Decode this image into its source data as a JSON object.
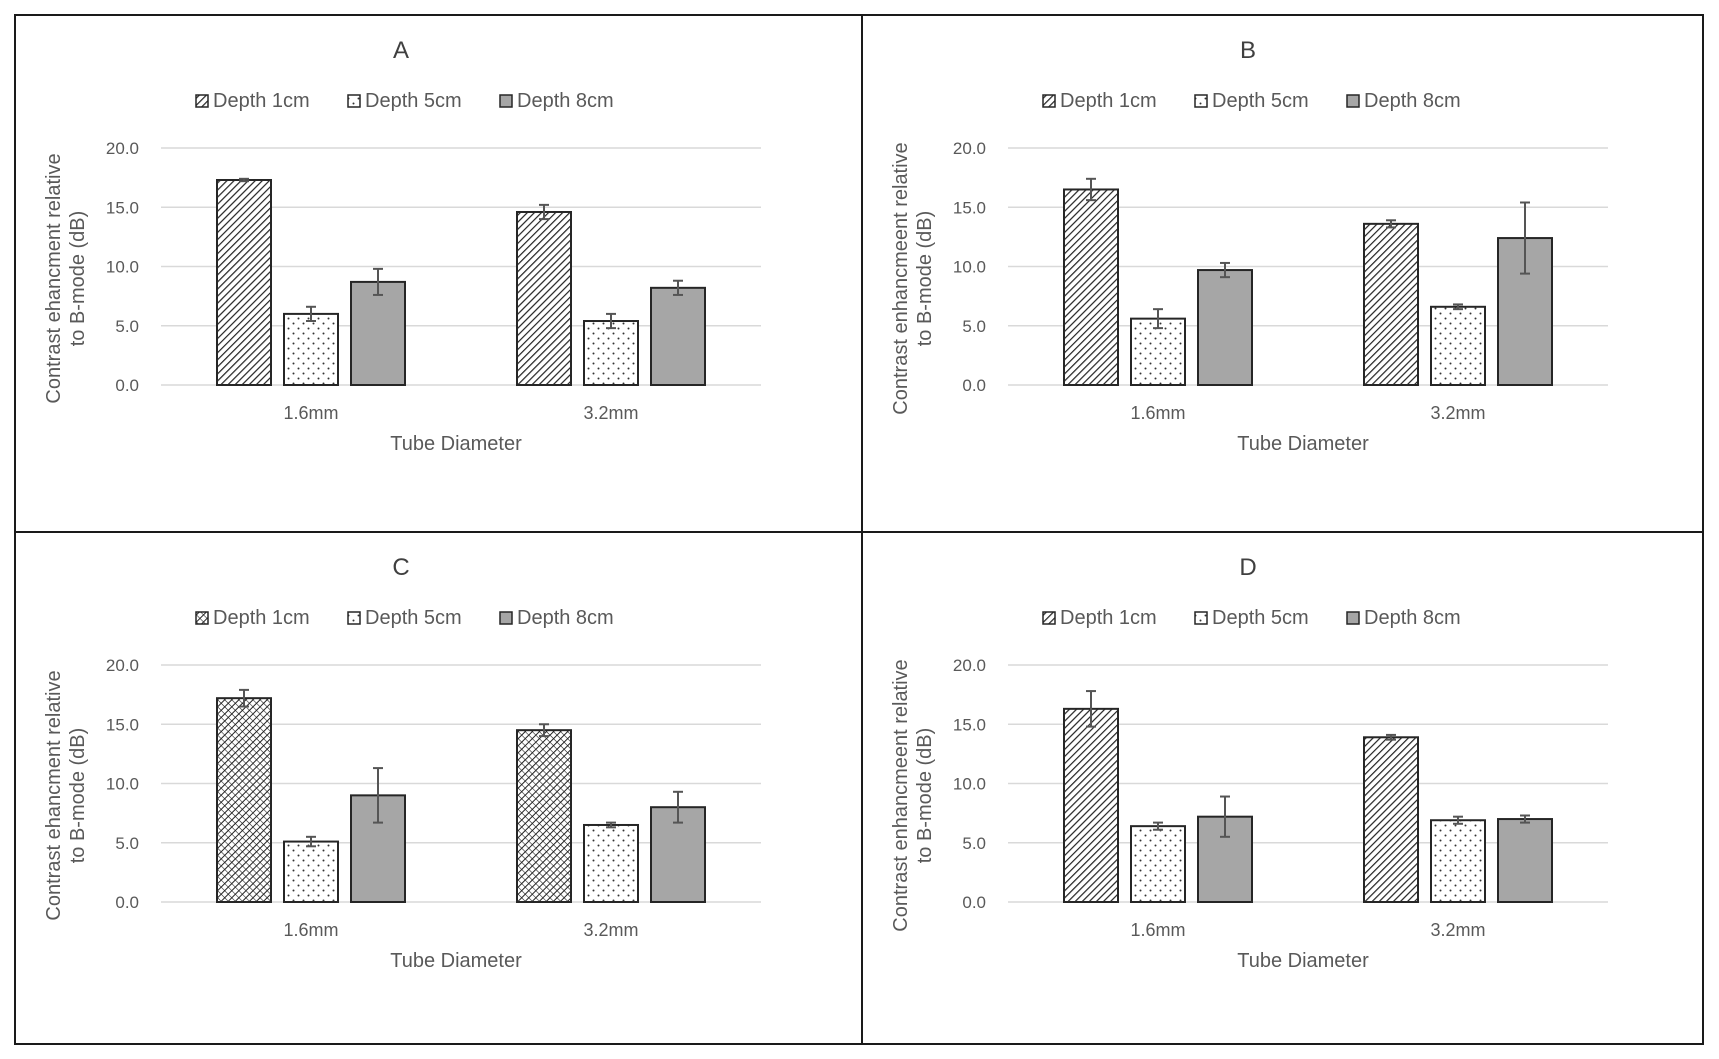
{
  "legend_labels": [
    "Depth 1cm",
    "Depth 5cm",
    "Depth 8cm"
  ],
  "colors": {
    "frame": "#1a1a1a",
    "grid": "#d9d9d9",
    "text": "#595959",
    "bar_solid": "#a6a6a6",
    "bar_edge": "#262626"
  },
  "chart_data": [
    {
      "panel": "A",
      "type": "bar",
      "title": "A",
      "xlabel": "Tube Diameter",
      "ylabel_lines": [
        "Contrast ehancment relative",
        "to B-mode (dB)"
      ],
      "categories": [
        "1.6mm",
        "3.2mm"
      ],
      "ylim": [
        0,
        20
      ],
      "yticks": [
        "0.0",
        "5.0",
        "10.0",
        "15.0",
        "20.0"
      ],
      "grid": true,
      "legend_position": "top",
      "series": [
        {
          "name": "Depth 1cm",
          "pattern": "diagonal-hatch",
          "values": [
            17.3,
            14.6
          ],
          "errors": [
            0.1,
            0.6
          ]
        },
        {
          "name": "Depth 5cm",
          "pattern": "dots",
          "values": [
            6.0,
            5.4
          ],
          "errors": [
            0.6,
            0.6
          ]
        },
        {
          "name": "Depth 8cm",
          "pattern": "solid-gray",
          "values": [
            8.7,
            8.2
          ],
          "errors": [
            1.1,
            0.6
          ]
        }
      ]
    },
    {
      "panel": "B",
      "type": "bar",
      "title": "B",
      "xlabel": "Tube Diameter",
      "ylabel_lines": [
        "Contrast enhancmeent  relative",
        "to B-mode (dB)"
      ],
      "categories": [
        "1.6mm",
        "3.2mm"
      ],
      "ylim": [
        0,
        20
      ],
      "yticks": [
        "0.0",
        "5.0",
        "10.0",
        "15.0",
        "20.0"
      ],
      "grid": true,
      "legend_position": "top",
      "series": [
        {
          "name": "Depth 1cm",
          "pattern": "diagonal-hatch",
          "values": [
            16.5,
            13.6
          ],
          "errors": [
            0.9,
            0.3
          ]
        },
        {
          "name": "Depth 5cm",
          "pattern": "dots",
          "values": [
            5.6,
            6.6
          ],
          "errors": [
            0.8,
            0.2
          ]
        },
        {
          "name": "Depth 8cm",
          "pattern": "solid-gray",
          "values": [
            9.7,
            12.4
          ],
          "errors": [
            0.6,
            3.0
          ]
        }
      ]
    },
    {
      "panel": "C",
      "type": "bar",
      "title": "C",
      "xlabel": "Tube Diameter",
      "ylabel_lines": [
        "Contrast ehancment relative",
        "to B-mode (dB)"
      ],
      "categories": [
        "1.6mm",
        "3.2mm"
      ],
      "ylim": [
        0,
        20
      ],
      "yticks": [
        "0.0",
        "5.0",
        "10.0",
        "15.0",
        "20.0"
      ],
      "grid": true,
      "legend_position": "top",
      "series": [
        {
          "name": "Depth 1cm",
          "pattern": "cross-hatch",
          "values": [
            17.2,
            14.5
          ],
          "errors": [
            0.7,
            0.5
          ]
        },
        {
          "name": "Depth 5cm",
          "pattern": "dots",
          "values": [
            5.1,
            6.5
          ],
          "errors": [
            0.4,
            0.2
          ]
        },
        {
          "name": "Depth 8cm",
          "pattern": "solid-gray",
          "values": [
            9.0,
            8.0
          ],
          "errors": [
            2.3,
            1.3
          ]
        }
      ]
    },
    {
      "panel": "D",
      "type": "bar",
      "title": "D",
      "xlabel": "Tube Diameter",
      "ylabel_lines": [
        "Contrast enhancmeent  relative",
        "to B-mode (dB)"
      ],
      "categories": [
        "1.6mm",
        "3.2mm"
      ],
      "ylim": [
        0,
        20
      ],
      "yticks": [
        "0.0",
        "5.0",
        "10.0",
        "15.0",
        "20.0"
      ],
      "grid": true,
      "legend_position": "top",
      "series": [
        {
          "name": "Depth 1cm",
          "pattern": "diagonal-hatch",
          "values": [
            16.3,
            13.9
          ],
          "errors": [
            1.5,
            0.2
          ]
        },
        {
          "name": "Depth 5cm",
          "pattern": "dots",
          "values": [
            6.4,
            6.9
          ],
          "errors": [
            0.3,
            0.3
          ]
        },
        {
          "name": "Depth 8cm",
          "pattern": "solid-gray",
          "values": [
            7.2,
            7.0
          ],
          "errors": [
            1.7,
            0.3
          ]
        }
      ]
    }
  ]
}
